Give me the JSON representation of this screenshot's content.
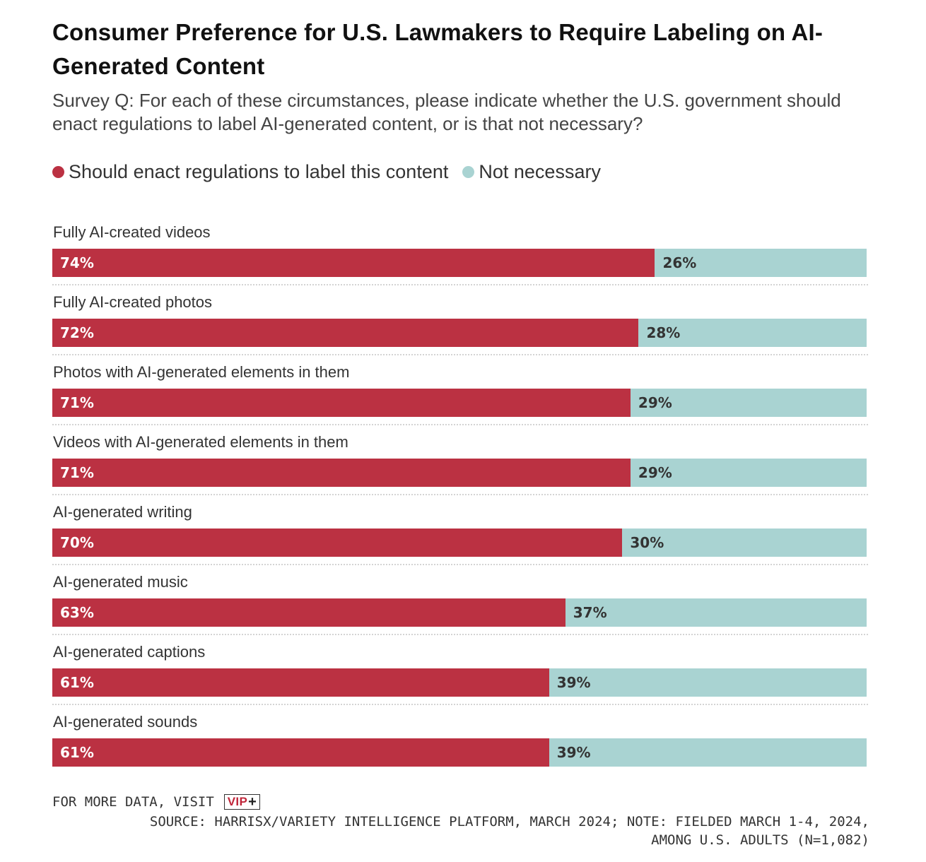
{
  "title": "Consumer Preference for U.S. Lawmakers to Require Labeling on AI-Generated Content",
  "subtitle": "Survey Q: For each of these circumstances, please indicate whether the U.S. government should enact regulations to label AI-generated content, or is that not necessary?",
  "colors": {
    "enact": "#bb3142",
    "not_necessary": "#a9d3d2",
    "enact_label": "#ffffff",
    "not_label": "#333333"
  },
  "chart_data": {
    "type": "bar",
    "orientation": "horizontal",
    "stacked": true,
    "title": "Consumer Preference for U.S. Lawmakers to Require Labeling on AI-Generated Content",
    "categories": [
      "Fully AI-created videos",
      "Fully AI-created photos",
      "Photos with AI-generated elements in them",
      "Videos with AI-generated elements in them",
      "AI-generated writing",
      "AI-generated music",
      "AI-generated captions",
      "AI-generated sounds"
    ],
    "series": [
      {
        "name": "Should enact regulations to label this content",
        "values": [
          74,
          72,
          71,
          71,
          70,
          63,
          61,
          61
        ],
        "labels": [
          "74%",
          "72%",
          "71%",
          "71%",
          "70%",
          "63%",
          "61%",
          "61%"
        ]
      },
      {
        "name": "Not necessary",
        "values": [
          26,
          28,
          29,
          29,
          30,
          37,
          39,
          39
        ],
        "labels": [
          "26%",
          "28%",
          "29%",
          "29%",
          "30%",
          "37%",
          "39%",
          "39%"
        ]
      }
    ],
    "xlim": [
      0,
      100
    ],
    "legend": "top-left",
    "grid": false
  },
  "footer": {
    "more_data": "FOR MORE DATA, VISIT",
    "vip_text": "VIP",
    "vip_plus": "+",
    "source_line1": "SOURCE: HARRISX/VARIETY INTELLIGENCE PLATFORM, MARCH 2024; NOTE: FIELDED MARCH 1-4, 2024,",
    "source_line2": "AMONG U.S. ADULTS (N=1,082)"
  }
}
